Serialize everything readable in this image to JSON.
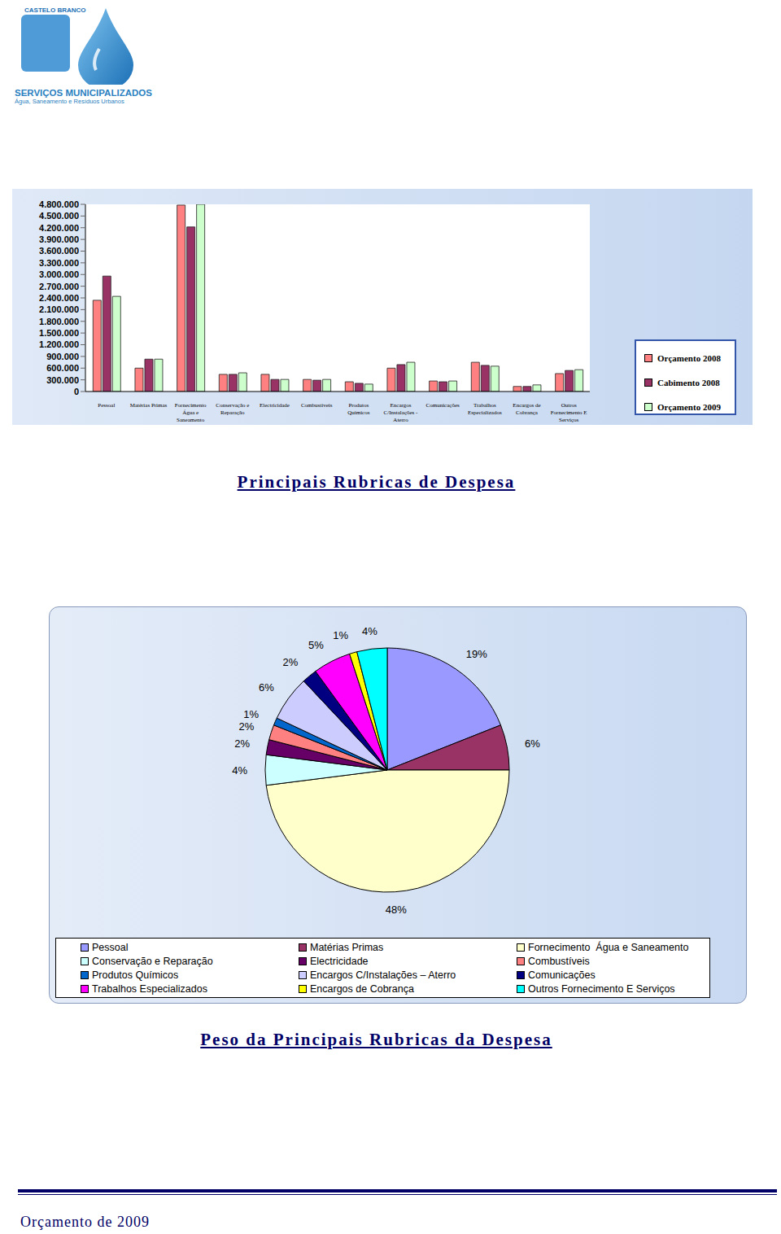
{
  "header": {
    "logo_top": "CASTELO BRANCO",
    "logo_title": "SERVIÇOS MUNICIPALIZADOS",
    "logo_subtitle": "Água, Saneamento e Resíduos Urbanos"
  },
  "chart_data": [
    {
      "type": "bar",
      "title": "Principais Rubricas de Despesa",
      "categories": [
        "Pessoal",
        "Matérias Primas",
        "Fornecimento Água e Saneamento",
        "Conservação e Reparação",
        "Electricidade",
        "Combustíveis",
        "Produtos Químicos",
        "Encargos C/Instalações - Aterro",
        "Comunicações",
        "Trabalhos Especializados",
        "Encargos de Cobrança",
        "Outros Fornecimento E Serviços"
      ],
      "series": [
        {
          "name": "Orçamento 2008",
          "color": "#ff8080",
          "values": [
            2340000,
            600000,
            4780000,
            440000,
            440000,
            310000,
            250000,
            600000,
            270000,
            750000,
            130000,
            460000
          ]
        },
        {
          "name": "Cabimento 2008",
          "color": "#993366",
          "values": [
            2960000,
            830000,
            4220000,
            440000,
            310000,
            290000,
            210000,
            690000,
            250000,
            670000,
            130000,
            540000
          ]
        },
        {
          "name": "Orçamento 2009",
          "color": "#ccffcc",
          "values": [
            2440000,
            830000,
            4800000,
            480000,
            310000,
            310000,
            190000,
            750000,
            270000,
            650000,
            170000,
            560000
          ]
        }
      ],
      "ylim": [
        0,
        4800000
      ],
      "yticks": [
        0,
        {
          "value": 300000,
          "label": "300.000"
        },
        {
          "value": 600000,
          "label": "600.000"
        },
        {
          "value": 900000,
          "label": "900.000"
        },
        {
          "value": 1200000,
          "label": "1.200.000"
        },
        {
          "value": 1500000,
          "label": "1.500.000"
        },
        {
          "value": 1800000,
          "label": "1.800.000"
        },
        {
          "value": 2100000,
          "label": "2.100.000"
        },
        {
          "value": 2400000,
          "label": "2.400.000"
        },
        {
          "value": 2700000,
          "label": "2.700.000"
        },
        {
          "value": 3000000,
          "label": "3.000.000"
        },
        {
          "value": 3300000,
          "label": "3.300.000"
        },
        {
          "value": 3600000,
          "label": "3.600.000"
        },
        {
          "value": 3900000,
          "label": "3.900.000"
        },
        {
          "value": 4200000,
          "label": "4.200.000"
        },
        {
          "value": 4500000,
          "label": "4.500.000"
        },
        {
          "value": 4800000,
          "label": "4.800.000"
        }
      ],
      "grid": false,
      "legend": "right"
    },
    {
      "type": "pie",
      "title": "Peso da Principais Rubricas da Despesa",
      "categories": [
        "Pessoal",
        "Matérias Primas",
        "Fornecimento  Água e Saneamento",
        "Conservação e Reparação",
        "Electricidade",
        "Combustíveis",
        "Produtos Químicos",
        "Encargos C/Instalações – Aterro",
        "Comunicações",
        "Trabalhos Especializados",
        "Encargos de Cobrança",
        "Outros Fornecimento E Serviços"
      ],
      "values": [
        19,
        6,
        48,
        4,
        2,
        2,
        1,
        6,
        2,
        5,
        1,
        4
      ],
      "value_labels": [
        "19%",
        "6%",
        "48%",
        "4%",
        "2%",
        "2%",
        "1%",
        "6%",
        "2%",
        "5%",
        "1%",
        "4%"
      ],
      "colors": [
        "#9999ff",
        "#993366",
        "#ffffcc",
        "#ccffff",
        "#660066",
        "#ff8080",
        "#0066cc",
        "#ccccff",
        "#000080",
        "#ff00ff",
        "#ffff00",
        "#00ffff"
      ],
      "data_labels": true,
      "legend": "bottom"
    }
  ],
  "footer": "Orçamento de 2009"
}
